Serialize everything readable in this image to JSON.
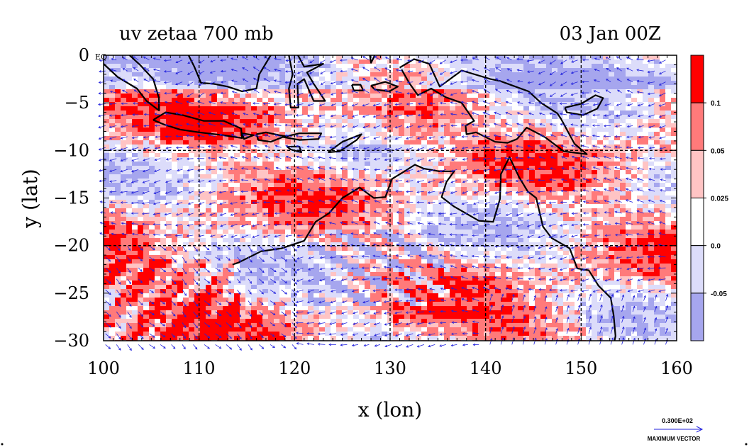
{
  "chart_data": {
    "type": "heatmap",
    "title": "uv zetaa 700 mb",
    "timestamp": "03 Jan 00Z",
    "xlabel": "x (lon)",
    "ylabel": "y (lat)",
    "xlim": [
      100,
      160
    ],
    "ylim": [
      -30,
      0
    ],
    "x_ticks": [
      100,
      110,
      120,
      130,
      140,
      150,
      160
    ],
    "y_ticks": [
      0,
      -5,
      -10,
      -15,
      -20,
      -25,
      -30
    ],
    "y_tick_labels": [
      "0",
      "−5",
      "−10",
      "−15",
      "−20",
      "−25",
      "−30"
    ],
    "grid": true,
    "grid_lon": [
      110,
      120,
      130,
      140,
      150
    ],
    "grid_lat": [
      -10,
      -20
    ],
    "corner_label": "EQ",
    "colorbar": {
      "placement": "right",
      "boundary_labels": [
        "0.1",
        "0.05",
        "0.025",
        "0.0",
        "-0.05"
      ],
      "boundaries": [
        0.1,
        0.05,
        0.025,
        0.0,
        -0.05
      ],
      "colors": [
        "#ff0000",
        "#ff7a7a",
        "#ffc4c4",
        "#ffffff",
        "#dcdcfa",
        "#a6a6ee"
      ]
    },
    "vector_key": {
      "label": "0.300E+02",
      "caption": "MAXIMUM VECTOR",
      "color": "#2222dd"
    },
    "coastline_color": "#000000"
  }
}
